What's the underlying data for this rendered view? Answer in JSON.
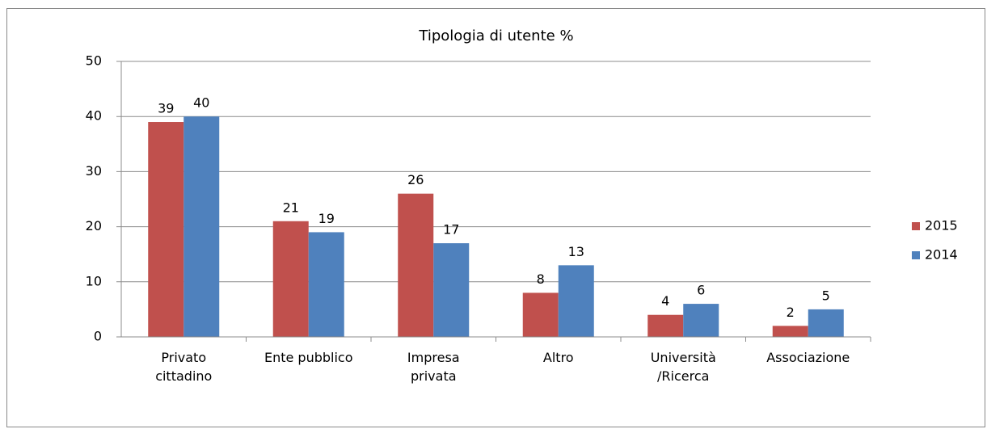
{
  "chart_data": {
    "type": "bar",
    "title": "Tipologia di utente %",
    "categories": [
      "Privato\ncittadino",
      "Ente pubblico",
      "Impresa\nprivata",
      "Altro",
      "Università\n/Ricerca",
      "Associazione"
    ],
    "series": [
      {
        "name": "2015",
        "color": "#c0504d",
        "values": [
          39,
          21,
          26,
          8,
          4,
          2
        ]
      },
      {
        "name": "2014",
        "color": "#4f81bd",
        "values": [
          40,
          19,
          17,
          13,
          6,
          5
        ]
      }
    ],
    "ylim": [
      0,
      50
    ],
    "yticks": [
      0,
      10,
      20,
      30,
      40,
      50
    ],
    "grid": true,
    "legend": "right"
  }
}
